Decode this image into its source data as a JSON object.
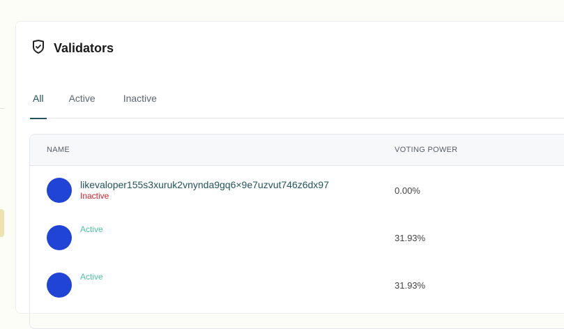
{
  "title": "Validators",
  "tabs": [
    "All",
    "Active",
    "Inactive"
  ],
  "columns": {
    "name": "NAME",
    "voting_power": "VOTING POWER"
  },
  "rows": [
    {
      "address": "likevaloper155s3xuruk2vnynda9gq6×9e7uzvut746z6dx97",
      "status": "Inactive",
      "voting_power": "0.00%"
    },
    {
      "address": "",
      "status": "Active",
      "voting_power": "31.93%"
    },
    {
      "address": "",
      "status": "Active",
      "voting_power": "31.93%"
    }
  ],
  "colors": {
    "active": "#4cc4a0",
    "inactive": "#d0222a",
    "avatar": "#1f44d6",
    "accent": "#22545a"
  }
}
